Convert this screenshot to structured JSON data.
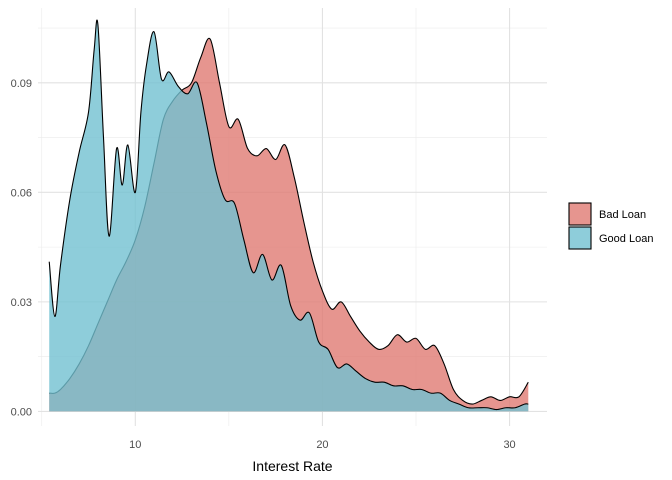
{
  "chart_data": {
    "type": "area",
    "title": "",
    "xlabel": "Interest Rate",
    "ylabel": "",
    "xlim": [
      4.8,
      32
    ],
    "ylim": [
      -0.004,
      0.1105
    ],
    "x_ticks": [
      10,
      20,
      30
    ],
    "x_tick_labels": [
      "10",
      "20",
      "30"
    ],
    "y_ticks": [
      0.0,
      0.03,
      0.06,
      0.09
    ],
    "y_tick_labels": [
      "0.00",
      "0.03",
      "0.06",
      "0.09"
    ],
    "grid": true,
    "legend_position": "right",
    "series": [
      {
        "name": "Bad Loan",
        "color": "#e07a73",
        "x": [
          5.4,
          5.7,
          6.0,
          6.5,
          7.0,
          7.5,
          8.0,
          8.5,
          9.0,
          9.5,
          10.0,
          10.5,
          11.0,
          11.5,
          12.0,
          12.5,
          13.0,
          13.5,
          14.0,
          14.5,
          15.0,
          15.5,
          16.0,
          16.5,
          17.0,
          17.5,
          18.0,
          18.5,
          19.0,
          19.5,
          20.0,
          20.5,
          21.0,
          21.5,
          22.0,
          22.5,
          23.0,
          23.5,
          24.0,
          24.5,
          25.0,
          25.5,
          26.0,
          26.5,
          27.0,
          27.5,
          28.0,
          28.5,
          29.0,
          29.5,
          30.0,
          30.5,
          31.0
        ],
        "y": [
          0.005,
          0.005,
          0.006,
          0.009,
          0.013,
          0.018,
          0.024,
          0.03,
          0.036,
          0.041,
          0.047,
          0.056,
          0.068,
          0.08,
          0.085,
          0.088,
          0.09,
          0.097,
          0.102,
          0.09,
          0.078,
          0.08,
          0.072,
          0.07,
          0.072,
          0.069,
          0.073,
          0.064,
          0.052,
          0.041,
          0.033,
          0.028,
          0.03,
          0.026,
          0.022,
          0.019,
          0.017,
          0.018,
          0.021,
          0.019,
          0.02,
          0.017,
          0.018,
          0.013,
          0.006,
          0.003,
          0.002,
          0.003,
          0.004,
          0.003,
          0.004,
          0.004,
          0.008
        ]
      },
      {
        "name": "Good Loan",
        "color": "#72c0d1",
        "x": [
          5.4,
          5.7,
          6.0,
          6.5,
          7.0,
          7.5,
          7.8,
          8.0,
          8.3,
          8.6,
          9.0,
          9.3,
          9.6,
          10.0,
          10.3,
          10.6,
          11.0,
          11.4,
          11.8,
          12.3,
          12.8,
          13.3,
          13.8,
          14.3,
          14.8,
          15.3,
          15.8,
          16.3,
          16.8,
          17.3,
          17.8,
          18.3,
          18.8,
          19.3,
          19.8,
          20.3,
          20.8,
          21.3,
          21.8,
          22.3,
          22.8,
          23.3,
          23.8,
          24.3,
          24.8,
          25.3,
          25.8,
          26.3,
          26.8,
          27.3,
          27.8,
          28.3,
          28.8,
          29.3,
          29.8,
          30.3,
          30.8,
          31.0
        ],
        "y": [
          0.041,
          0.026,
          0.04,
          0.058,
          0.071,
          0.082,
          0.099,
          0.106,
          0.075,
          0.048,
          0.072,
          0.062,
          0.073,
          0.06,
          0.082,
          0.095,
          0.104,
          0.091,
          0.093,
          0.089,
          0.087,
          0.09,
          0.079,
          0.066,
          0.058,
          0.057,
          0.047,
          0.038,
          0.043,
          0.036,
          0.04,
          0.029,
          0.025,
          0.027,
          0.019,
          0.017,
          0.012,
          0.013,
          0.011,
          0.009,
          0.008,
          0.008,
          0.007,
          0.007,
          0.006,
          0.006,
          0.005,
          0.005,
          0.003,
          0.002,
          0.001,
          0.001,
          0.001,
          0.0005,
          0.001,
          0.001,
          0.002,
          0.002
        ]
      }
    ]
  }
}
